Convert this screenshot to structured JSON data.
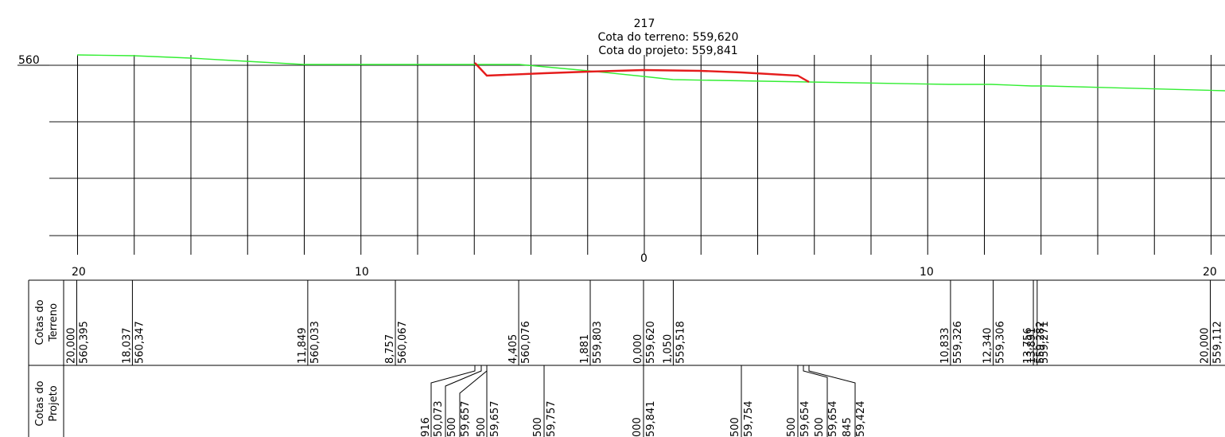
{
  "section": {
    "station": "217",
    "terrain_label": "Cota do terreno: 559,620",
    "project_label": "Cota do projeto: 559,841"
  },
  "elevation_label": "560",
  "offset_labels": {
    "left_end": "20",
    "left_mid": "10",
    "center": "0",
    "right_mid": "10",
    "right_end": "20"
  },
  "rows": {
    "terrain": {
      "title_line1": "Cotas do",
      "title_line2": "Terreno"
    },
    "project": {
      "title_line1": "Cotas do",
      "title_line2": "Projeto"
    }
  },
  "terrain_points": [
    {
      "side": "left",
      "offset": "20,000",
      "elevation": "560,395"
    },
    {
      "side": "left",
      "offset": "18,037",
      "elevation": "560,347"
    },
    {
      "side": "left",
      "offset": "11,849",
      "elevation": "560,033"
    },
    {
      "side": "left",
      "offset": "8,757",
      "elevation": "560,067"
    },
    {
      "side": "left",
      "offset": "4,405",
      "elevation": "560,076"
    },
    {
      "side": "left",
      "offset": "1,881",
      "elevation": "559,803"
    },
    {
      "side": "center",
      "offset": "0,000",
      "elevation": "559,620"
    },
    {
      "side": "right",
      "offset": "1,050",
      "elevation": "559,518"
    },
    {
      "side": "right",
      "offset": "10,833",
      "elevation": "559,326"
    },
    {
      "side": "right",
      "offset": "12,340",
      "elevation": "559,306"
    },
    {
      "side": "right",
      "offset": "13,756",
      "elevation": "559,282"
    },
    {
      "side": "right",
      "offset": "13,891",
      "elevation": "559,271"
    },
    {
      "side": "right",
      "offset": "20,000",
      "elevation": "559,112"
    }
  ],
  "project_labels_visible": {
    "p1_offset": "916",
    "p1_elev": "50,073",
    "p2_offset": "500",
    "p2_elev": "59,657",
    "p3_offset": "500",
    "p3_elev": "59,657",
    "p4_offset": "500",
    "p4_elev": "59,757",
    "p5_offset": "000",
    "p5_elev": "59,841",
    "p6_offset": "500",
    "p6_elev": "59,754",
    "p7_offset": "500",
    "p7_elev": "59,654",
    "p8_offset": "500",
    "p8_elev": "59,654",
    "p9_offset": "845",
    "p9_elev": "59,424"
  },
  "colors": {
    "terrain_line": "#33ee33",
    "project_line": "#e51c1c",
    "grid": "#000000"
  }
}
